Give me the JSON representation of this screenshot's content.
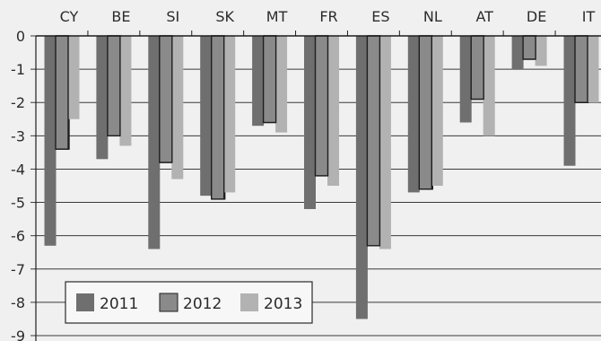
{
  "chart_data": {
    "type": "bar",
    "title": "",
    "xlabel": "",
    "ylabel": "",
    "categories": [
      "CY",
      "BE",
      "SI",
      "SK",
      "MT",
      "FR",
      "ES",
      "NL",
      "AT",
      "DE",
      "IT"
    ],
    "series": [
      {
        "name": "2011",
        "color": "#6f6f6f",
        "values": [
          -6.3,
          -3.7,
          -6.4,
          -4.8,
          -2.7,
          -5.2,
          -8.5,
          -4.7,
          -2.6,
          -1.0,
          -3.9
        ]
      },
      {
        "name": "2012",
        "color": "#8a8a8a",
        "values": [
          -3.4,
          -3.0,
          -3.8,
          -4.9,
          -2.6,
          -4.2,
          -6.3,
          -4.6,
          -1.9,
          -0.7,
          -2.0
        ]
      },
      {
        "name": "2013",
        "color": "#b2b2b2",
        "values": [
          -2.5,
          -3.3,
          -4.3,
          -4.7,
          -2.9,
          -4.5,
          -6.4,
          -4.5,
          -3.0,
          -0.9,
          -2.0
        ]
      }
    ],
    "ylim": [
      -9,
      0
    ],
    "yticks": [
      0,
      -1,
      -2,
      -3,
      -4,
      -5,
      -6,
      -7,
      -8,
      -9
    ],
    "grid": true,
    "legend": "bottom-left"
  }
}
